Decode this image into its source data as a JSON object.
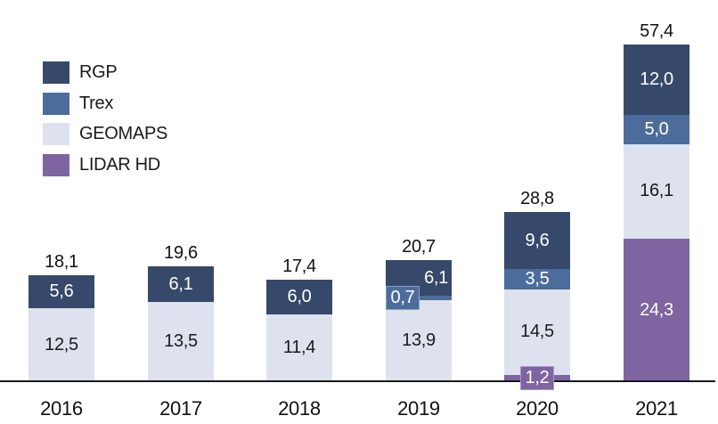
{
  "chart_data": {
    "type": "bar",
    "stacked": true,
    "title": "",
    "xlabel": "",
    "ylabel": "",
    "grid": false,
    "legend_position": "top-left",
    "decimal_separator": ",",
    "categories": [
      "2016",
      "2017",
      "2018",
      "2019",
      "2020",
      "2021"
    ],
    "series_stack_bottom_up": [
      {
        "name": "LIDAR HD",
        "color": "#7E64A1",
        "label_color": "#FFFFFF",
        "values": [
          null,
          null,
          null,
          null,
          1.2,
          24.3
        ]
      },
      {
        "name": "GEOMAPS",
        "color": "#DDE2EE",
        "label_color": "#1A1A1A",
        "values": [
          12.5,
          13.5,
          11.4,
          13.9,
          14.5,
          16.1
        ]
      },
      {
        "name": "Trex",
        "color": "#4C6D9C",
        "label_color": "#FFFFFF",
        "values": [
          null,
          null,
          null,
          0.7,
          3.5,
          5.0
        ]
      },
      {
        "name": "RGP",
        "color": "#36496A",
        "label_color": "#FFFFFF",
        "values": [
          5.6,
          6.1,
          6.0,
          6.1,
          9.6,
          12.0
        ]
      }
    ],
    "totals": [
      18.1,
      19.6,
      17.4,
      20.7,
      28.8,
      57.4
    ],
    "ylim": [
      0,
      60
    ],
    "legend": [
      {
        "label": "RGP",
        "color": "#36496A"
      },
      {
        "label": "Trex",
        "color": "#4C6D9C"
      },
      {
        "label": "GEOMAPS",
        "color": "#DDE2EE"
      },
      {
        "label": "LIDAR HD",
        "color": "#7E64A1"
      }
    ],
    "label_overrides": [
      {
        "category": "2019",
        "series": "RGP",
        "x_align": "right"
      },
      {
        "category": "2019",
        "series": "Trex",
        "style": "box",
        "x_align": "left"
      },
      {
        "category": "2020",
        "series": "LIDAR HD",
        "style": "box",
        "x_align": "center"
      }
    ]
  }
}
